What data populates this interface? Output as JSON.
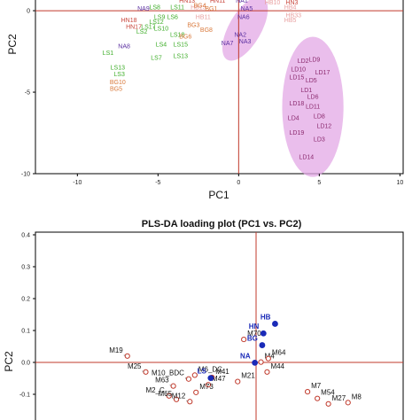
{
  "chart_data": [
    {
      "type": "scatter",
      "title": "",
      "xlabel": "PC1",
      "ylabel": "PC2",
      "xlim": [
        -12.6,
        10.2
      ],
      "ylim": [
        -10,
        1.2
      ],
      "xticks": [
        "-10",
        "-5",
        "0",
        "5",
        "10"
      ],
      "xtick_values": [
        -10,
        -5,
        0,
        5,
        10
      ],
      "yticks": [
        "0",
        "-5",
        "-10"
      ],
      "ytick_values": [
        0,
        -5,
        -10
      ],
      "reference_lines": {
        "x": 0,
        "y": 0,
        "color": "#c0392b"
      },
      "colors": {
        "LS": "#3fae2a",
        "BG": "#d9793b",
        "NA": "#5a2fa0",
        "HN": "#c8453b",
        "HB": "#e8a0a0",
        "LD": "#8b2a6e",
        "ellipse": "#e3a8e6"
      },
      "ellipses": [
        {
          "cx": 0.4,
          "cy": -1.1,
          "rx": 1.0,
          "ry": 2.2,
          "rotation": 30
        },
        {
          "cx": 4.6,
          "cy": -5.9,
          "rx": 1.9,
          "ry": 4.3,
          "rotation": 0
        }
      ],
      "points": [
        {
          "label": "HN16",
          "x": -2.6,
          "y": 1.1,
          "group": "HN"
        },
        {
          "label": "HN14",
          "x": -2.4,
          "y": 0.9,
          "group": "HN"
        },
        {
          "label": "HN11",
          "x": -1.3,
          "y": 0.6,
          "group": "HN"
        },
        {
          "label": "NA1",
          "x": 0.2,
          "y": 0.6,
          "group": "NA"
        },
        {
          "label": "HN6",
          "x": 0.2,
          "y": 1.0,
          "group": "HN"
        },
        {
          "label": "NA4",
          "x": 0.7,
          "y": 0.9,
          "group": "NA"
        },
        {
          "label": "HN9",
          "x": 1.7,
          "y": 0.9,
          "group": "HN"
        },
        {
          "label": "HN3",
          "x": 3.3,
          "y": 0.5,
          "group": "HN"
        },
        {
          "label": "HB2",
          "x": 3.6,
          "y": 1.0,
          "group": "HB"
        },
        {
          "label": "HB4",
          "x": 3.2,
          "y": 0.2,
          "group": "HB"
        },
        {
          "label": "HB10",
          "x": 2.1,
          "y": 0.5,
          "group": "HB"
        },
        {
          "label": "HB33",
          "x": 3.4,
          "y": -0.3,
          "group": "HB"
        },
        {
          "label": "HB5",
          "x": 3.2,
          "y": -0.6,
          "group": "HB"
        },
        {
          "label": "HN13",
          "x": -3.2,
          "y": 0.6,
          "group": "HN"
        },
        {
          "label": "NA5",
          "x": 0.5,
          "y": 0.1,
          "group": "NA"
        },
        {
          "label": "NA6",
          "x": 0.3,
          "y": -0.4,
          "group": "NA"
        },
        {
          "label": "HB15",
          "x": -2.5,
          "y": 0.2,
          "group": "HB"
        },
        {
          "label": "HB11",
          "x": -2.2,
          "y": -0.4,
          "group": "HB"
        },
        {
          "label": "NA9",
          "x": -5.9,
          "y": 0.1,
          "group": "NA"
        },
        {
          "label": "LS8",
          "x": -5.2,
          "y": 0.2,
          "group": "LS"
        },
        {
          "label": "LS11",
          "x": -3.8,
          "y": 0.2,
          "group": "LS"
        },
        {
          "label": "BG4",
          "x": -2.4,
          "y": 0.3,
          "group": "BG"
        },
        {
          "label": "BG1",
          "x": -1.7,
          "y": 0.1,
          "group": "BG"
        },
        {
          "label": "LS9",
          "x": -4.9,
          "y": -0.4,
          "group": "LS"
        },
        {
          "label": "HN18",
          "x": -6.8,
          "y": -0.6,
          "group": "HN"
        },
        {
          "label": "LS12",
          "x": -5.1,
          "y": -0.7,
          "group": "LS"
        },
        {
          "label": "LS6",
          "x": -4.1,
          "y": -0.4,
          "group": "LS"
        },
        {
          "label": "BG3",
          "x": -2.8,
          "y": -0.9,
          "group": "BG"
        },
        {
          "label": "BG8",
          "x": -2.0,
          "y": -1.2,
          "group": "BG"
        },
        {
          "label": "HN17",
          "x": -6.5,
          "y": -1.0,
          "group": "HN"
        },
        {
          "label": "LS2",
          "x": -6.0,
          "y": -1.3,
          "group": "LS"
        },
        {
          "label": "LS17",
          "x": -5.6,
          "y": -1.0,
          "group": "LS"
        },
        {
          "label": "LS10",
          "x": -4.8,
          "y": -1.1,
          "group": "LS"
        },
        {
          "label": "LS18",
          "x": -3.8,
          "y": -1.5,
          "group": "LS"
        },
        {
          "label": "BG6",
          "x": -3.3,
          "y": -1.6,
          "group": "BG"
        },
        {
          "label": "NA2",
          "x": 0.1,
          "y": -1.5,
          "group": "NA"
        },
        {
          "label": "NA3",
          "x": 0.4,
          "y": -1.9,
          "group": "NA"
        },
        {
          "label": "NA7",
          "x": -0.7,
          "y": -2.0,
          "group": "NA"
        },
        {
          "label": "NA8",
          "x": -7.1,
          "y": -2.2,
          "group": "NA"
        },
        {
          "label": "LS1",
          "x": -8.1,
          "y": -2.6,
          "group": "LS"
        },
        {
          "label": "LS4",
          "x": -4.8,
          "y": -2.1,
          "group": "LS"
        },
        {
          "label": "LS15",
          "x": -3.6,
          "y": -2.1,
          "group": "LS"
        },
        {
          "label": "LS7",
          "x": -5.1,
          "y": -2.9,
          "group": "LS"
        },
        {
          "label": "LS13",
          "x": -3.6,
          "y": -2.8,
          "group": "LS"
        },
        {
          "label": "LS13",
          "x": -7.5,
          "y": -3.5,
          "group": "LS"
        },
        {
          "label": "LS3",
          "x": -7.4,
          "y": -3.9,
          "group": "LS"
        },
        {
          "label": "BG10",
          "x": -7.5,
          "y": -4.4,
          "group": "BG"
        },
        {
          "label": "BG5",
          "x": -7.6,
          "y": -4.8,
          "group": "BG"
        },
        {
          "label": "LD2",
          "x": 4.0,
          "y": -3.1,
          "group": "LD"
        },
        {
          "label": "LD9",
          "x": 4.7,
          "y": -3.0,
          "group": "LD"
        },
        {
          "label": "LD10",
          "x": 3.7,
          "y": -3.6,
          "group": "LD"
        },
        {
          "label": "LD17",
          "x": 5.2,
          "y": -3.8,
          "group": "LD"
        },
        {
          "label": "LD15",
          "x": 3.6,
          "y": -4.1,
          "group": "LD"
        },
        {
          "label": "LD5",
          "x": 4.5,
          "y": -4.3,
          "group": "LD"
        },
        {
          "label": "LD1",
          "x": 4.2,
          "y": -4.9,
          "group": "LD"
        },
        {
          "label": "LD6",
          "x": 4.6,
          "y": -5.3,
          "group": "LD"
        },
        {
          "label": "LD18",
          "x": 3.6,
          "y": -5.7,
          "group": "LD"
        },
        {
          "label": "LD11",
          "x": 4.6,
          "y": -5.9,
          "group": "LD"
        },
        {
          "label": "LD8",
          "x": 5.0,
          "y": -6.5,
          "group": "LD"
        },
        {
          "label": "LD4",
          "x": 3.4,
          "y": -6.6,
          "group": "LD"
        },
        {
          "label": "LD12",
          "x": 5.3,
          "y": -7.1,
          "group": "LD"
        },
        {
          "label": "LD19",
          "x": 3.6,
          "y": -7.5,
          "group": "LD"
        },
        {
          "label": "LD3",
          "x": 5.0,
          "y": -7.9,
          "group": "LD"
        },
        {
          "label": "LD14",
          "x": 4.2,
          "y": -9.0,
          "group": "LD"
        }
      ]
    },
    {
      "type": "scatter",
      "title": "PLS-DA loading plot (PC1 vs. PC2)",
      "xlabel": "",
      "ylabel": "PC2",
      "ylim": [
        -0.06,
        0.42
      ],
      "xlim": [
        -0.36,
        0.24
      ],
      "yticks": [
        "0.4",
        "0.3",
        "0.2",
        "0.1",
        "0.0",
        "-0.1"
      ],
      "ytick_values": [
        0.4,
        0.3,
        0.2,
        0.1,
        0.0,
        -0.1
      ],
      "reference_lines": {
        "x": 0,
        "y": 0,
        "color": "#c0392b"
      },
      "classes": [
        {
          "label": "HB",
          "x": 0.031,
          "y": 0.121
        },
        {
          "label": "HN",
          "x": 0.012,
          "y": 0.091
        },
        {
          "label": "BG",
          "x": 0.01,
          "y": 0.054
        },
        {
          "label": "NA",
          "x": -0.002,
          "y": -0.001
        },
        {
          "label": "LS",
          "x": -0.074,
          "y": -0.049
        }
      ],
      "variables": [
        {
          "label": "M70",
          "x": -0.02,
          "y": 0.072
        },
        {
          "label": "M19",
          "x": -0.21,
          "y": 0.02
        },
        {
          "label": "M4",
          "x": 0.008,
          "y": 0.001
        },
        {
          "label": "M64",
          "x": 0.02,
          "y": 0.012
        },
        {
          "label": "M25",
          "x": -0.18,
          "y": -0.03
        },
        {
          "label": "M6_DC",
          "x": -0.1,
          "y": -0.04
        },
        {
          "label": "M44",
          "x": 0.018,
          "y": -0.03
        },
        {
          "label": "M10_BDC",
          "x": -0.11,
          "y": -0.052
        },
        {
          "label": "M41",
          "x": -0.072,
          "y": -0.047
        },
        {
          "label": "M47",
          "x": -0.078,
          "y": -0.07
        },
        {
          "label": "M21",
          "x": -0.03,
          "y": -0.06
        },
        {
          "label": "M63",
          "x": -0.135,
          "y": -0.074
        },
        {
          "label": "M73",
          "x": -0.098,
          "y": -0.094
        },
        {
          "label": "M2_C",
          "x": -0.142,
          "y": -0.105
        },
        {
          "label": "M65",
          "x": -0.13,
          "y": -0.116
        },
        {
          "label": "M12",
          "x": -0.108,
          "y": -0.123
        },
        {
          "label": "M7",
          "x": 0.084,
          "y": -0.092
        },
        {
          "label": "M54",
          "x": 0.1,
          "y": -0.113
        },
        {
          "label": "M27",
          "x": 0.118,
          "y": -0.13
        },
        {
          "label": "M8",
          "x": 0.15,
          "y": -0.126
        }
      ]
    }
  ]
}
